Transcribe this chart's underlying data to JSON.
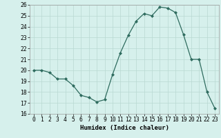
{
  "x": [
    0,
    1,
    2,
    3,
    4,
    5,
    6,
    7,
    8,
    9,
    10,
    11,
    12,
    13,
    14,
    15,
    16,
    17,
    18,
    19,
    20,
    21,
    22,
    23
  ],
  "y": [
    20.0,
    20.0,
    19.8,
    19.2,
    19.2,
    18.6,
    17.7,
    17.5,
    17.1,
    17.3,
    19.6,
    21.6,
    23.2,
    24.5,
    25.2,
    25.0,
    25.8,
    25.7,
    25.3,
    23.3,
    21.0,
    21.0,
    18.0,
    16.5
  ],
  "line_color": "#2e6b5e",
  "marker": "D",
  "marker_size": 2.0,
  "bg_color": "#d6f0ec",
  "grid_color": "#b8d8d2",
  "xlabel": "Humidex (Indice chaleur)",
  "ylim": [
    16,
    26
  ],
  "xlim": [
    -0.5,
    23.5
  ],
  "yticks": [
    16,
    17,
    18,
    19,
    20,
    21,
    22,
    23,
    24,
    25,
    26
  ],
  "xticks": [
    0,
    1,
    2,
    3,
    4,
    5,
    6,
    7,
    8,
    9,
    10,
    11,
    12,
    13,
    14,
    15,
    16,
    17,
    18,
    19,
    20,
    21,
    22,
    23
  ],
  "xtick_labels": [
    "0",
    "1",
    "2",
    "3",
    "4",
    "5",
    "6",
    "7",
    "8",
    "9",
    "10",
    "11",
    "12",
    "13",
    "14",
    "15",
    "16",
    "17",
    "18",
    "19",
    "20",
    "21",
    "22",
    "23"
  ],
  "axis_label_fontsize": 6.5,
  "tick_fontsize": 5.8
}
